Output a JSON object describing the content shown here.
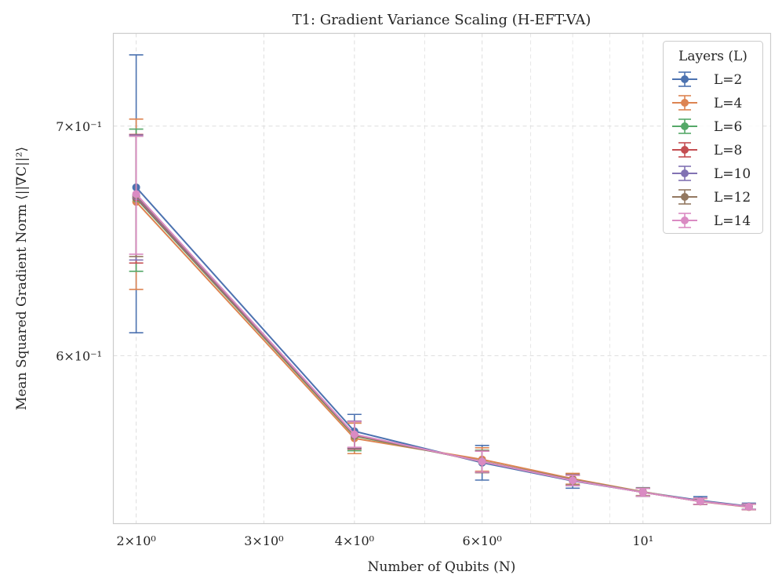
{
  "chart_data": {
    "type": "line",
    "title": "T1: Gradient Variance Scaling (H-EFT-VA)",
    "xlabel": "Number of Qubits (N)",
    "ylabel": "Mean Squared Gradient Norm ⟨||∇C||²⟩",
    "xscale": "log",
    "yscale": "log",
    "xlim": [
      1.86,
      15.0
    ],
    "ylim": [
      0.536,
      0.745
    ],
    "x": [
      2,
      4,
      6,
      8,
      10,
      12,
      14
    ],
    "x_ticks": [
      {
        "value": 2,
        "label": "2×10⁰"
      },
      {
        "value": 3,
        "label": "3×10⁰"
      },
      {
        "value": 4,
        "label": "4×10⁰"
      },
      {
        "value": 6,
        "label": "6×10⁰"
      },
      {
        "value": 10,
        "label": "10¹"
      }
    ],
    "x_minor_grid": [
      5,
      7,
      8,
      9
    ],
    "y_ticks": [
      {
        "value": 0.6,
        "label": "6×10⁻¹"
      },
      {
        "value": 0.7,
        "label": "7×10⁻¹"
      }
    ],
    "grid": true,
    "legend_title": "Layers (L)",
    "legend_position": "top-right",
    "series": [
      {
        "name": "L=2",
        "color": "#4c72b0",
        "values": [
          0.6718,
          0.5703,
          0.5584,
          0.5516,
          0.5475,
          0.5444,
          0.5423
        ],
        "errors": [
          0.0625,
          0.0065,
          0.0065,
          0.0027,
          0.0016,
          0.0014,
          0.0011
        ]
      },
      {
        "name": "L=4",
        "color": "#dd8452",
        "values": [
          0.6653,
          0.5676,
          0.5596,
          0.5524,
          0.5476,
          0.544,
          0.542
        ],
        "errors": [
          0.038,
          0.0058,
          0.0044,
          0.002,
          0.0014,
          0.0011,
          0.001
        ]
      },
      {
        "name": "L=6",
        "color": "#55a868",
        "values": [
          0.6668,
          0.5685,
          0.5589,
          0.552,
          0.5475,
          0.5441,
          0.5421
        ],
        "errors": [
          0.0318,
          0.0056,
          0.0042,
          0.0019,
          0.0014,
          0.0011,
          0.001
        ]
      },
      {
        "name": "L=8",
        "color": "#c44e52",
        "values": [
          0.6673,
          0.5688,
          0.5588,
          0.5519,
          0.5474,
          0.5441,
          0.5421
        ],
        "errors": [
          0.0288,
          0.0053,
          0.0041,
          0.0019,
          0.0014,
          0.0011,
          0.001
        ]
      },
      {
        "name": "L=10",
        "color": "#8172b3",
        "values": [
          0.6678,
          0.569,
          0.5588,
          0.5518,
          0.5474,
          0.5441,
          0.5421
        ],
        "errors": [
          0.028,
          0.0052,
          0.004,
          0.0019,
          0.0014,
          0.0011,
          0.001
        ]
      },
      {
        "name": "L=12",
        "color": "#937860",
        "values": [
          0.6683,
          0.569,
          0.5588,
          0.5518,
          0.5474,
          0.5441,
          0.5421
        ],
        "errors": [
          0.027,
          0.005,
          0.004,
          0.0019,
          0.0014,
          0.0011,
          0.001
        ]
      },
      {
        "name": "L=14",
        "color": "#da8bc3",
        "values": [
          0.6688,
          0.5691,
          0.5588,
          0.5518,
          0.5474,
          0.5441,
          0.5421
        ],
        "errors": [
          0.0265,
          0.0049,
          0.0039,
          0.0019,
          0.0014,
          0.0011,
          0.001
        ]
      }
    ]
  }
}
